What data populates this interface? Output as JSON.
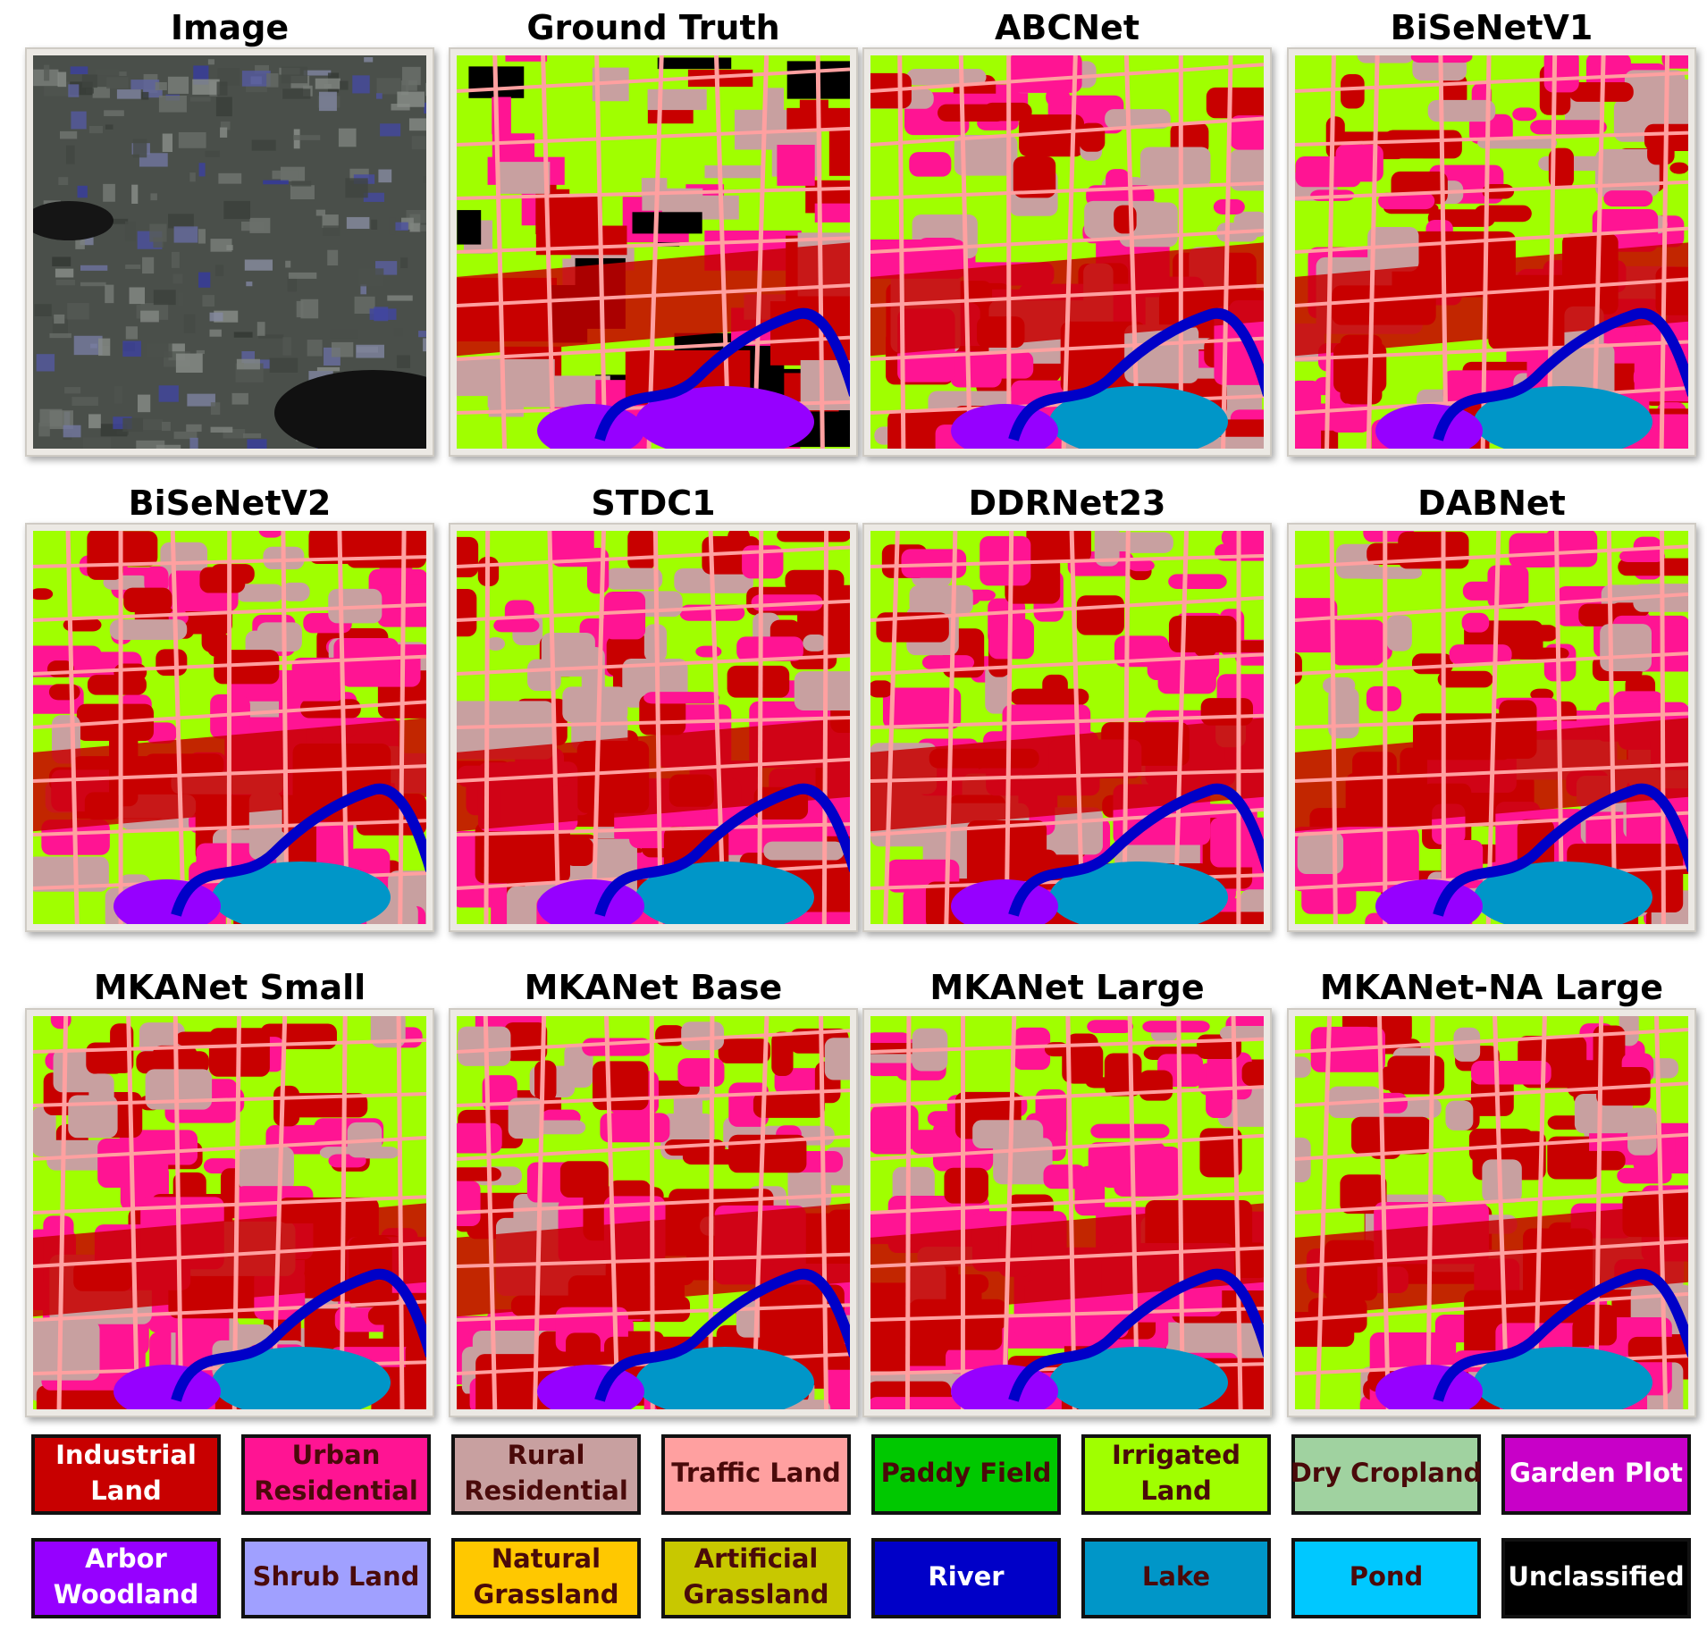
{
  "panels": [
    {
      "title": "Image"
    },
    {
      "title": "Ground Truth"
    },
    {
      "title": "ABCNet"
    },
    {
      "title": "BiSeNetV1"
    },
    {
      "title": "BiSeNetV2"
    },
    {
      "title": "STDC1"
    },
    {
      "title": "DDRNet23"
    },
    {
      "title": "DABNet"
    },
    {
      "title": "MKANet Small"
    },
    {
      "title": "MKANet Base"
    },
    {
      "title": "MKANet Large"
    },
    {
      "title": "MKANet-NA Large"
    }
  ],
  "legend": [
    {
      "lines": [
        "Industrial",
        "Land"
      ],
      "color": "#c80000"
    },
    {
      "lines": [
        "Urban",
        "Residential"
      ],
      "color": "#ff1493"
    },
    {
      "lines": [
        "Rural",
        "Residential"
      ],
      "color": "#c8a0a0"
    },
    {
      "lines": [
        "Traffic Land"
      ],
      "color": "#ffa0a0"
    },
    {
      "lines": [
        "Paddy Field"
      ],
      "color": "#00c800"
    },
    {
      "lines": [
        "Irrigated",
        "Land"
      ],
      "color": "#a0ff00"
    },
    {
      "lines": [
        "Dry Cropland"
      ],
      "color": "#a0d2a0"
    },
    {
      "lines": [
        "Garden Plot"
      ],
      "color": "#c800c8"
    },
    {
      "lines": [
        "Arbor",
        "Woodland"
      ],
      "color": "#9600ff"
    },
    {
      "lines": [
        "Shrub Land"
      ],
      "color": "#a0a0ff"
    },
    {
      "lines": [
        "Natural",
        "Grassland"
      ],
      "color": "#ffc800"
    },
    {
      "lines": [
        "Artificial",
        "Grassland"
      ],
      "color": "#c8c800"
    },
    {
      "lines": [
        "River"
      ],
      "color": "#0000c8"
    },
    {
      "lines": [
        "Lake"
      ],
      "color": "#0096c8"
    },
    {
      "lines": [
        "Pond"
      ],
      "color": "#00c8ff"
    },
    {
      "lines": [
        "Unclassified"
      ],
      "color": "#000000"
    }
  ]
}
